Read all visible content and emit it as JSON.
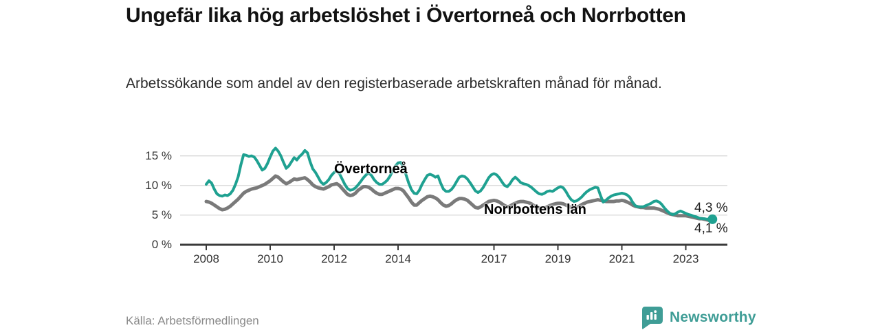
{
  "header": {
    "title": "Ungefär lika hög arbetslöshet i Övertorneå och Norrbotten",
    "subtitle": "Arbetssökande som andel av den registerbaserade arbetskraften månad för månad."
  },
  "footer": {
    "source": "Källa: Arbetsförmedlingen",
    "brand": "Newsworthy"
  },
  "colors": {
    "accent_teal": "#1fa191",
    "line_gray": "#7a7a7a",
    "logo_teal": "#3f9d96",
    "axis": "#3a3a3a",
    "gridline": "#d9d9d9",
    "tick_text": "#333333",
    "end_label_text": "#222222"
  },
  "chart_data": {
    "type": "line",
    "title": "Ungefär lika hög arbetslöshet i Övertorneå och Norrbotten",
    "subtitle": "Arbetssökande som andel av den registerbaserade arbetskraften månad för månad.",
    "unit": "%",
    "x_frequency": "monthly",
    "x_start": "2008-01",
    "x_end": "2023-11",
    "ylim": [
      0,
      17.6
    ],
    "grid": "horizontal",
    "y_ticks": [
      {
        "value": 0,
        "label": "0 %"
      },
      {
        "value": 5,
        "label": "5 %"
      },
      {
        "value": 10,
        "label": "10 %"
      },
      {
        "value": 15,
        "label": "15 %"
      }
    ],
    "x_tick_years": [
      2008,
      2010,
      2012,
      2014,
      2017,
      2019,
      2021,
      2023
    ],
    "series": [
      {
        "name": "Övertorneå",
        "color": "#1fa191",
        "end_label": "4,3 %",
        "end_value": 4.3,
        "values": [
          10.2,
          10.8,
          10.4,
          9.4,
          8.6,
          8.3,
          8.2,
          8.4,
          8.3,
          8.6,
          9.2,
          10.2,
          11.5,
          13.5,
          15.2,
          15.1,
          14.9,
          15.0,
          14.8,
          14.2,
          13.4,
          12.6,
          12.9,
          13.7,
          14.8,
          15.8,
          16.3,
          15.8,
          15.0,
          13.9,
          12.9,
          13.3,
          14.0,
          14.7,
          14.3,
          14.9,
          15.3,
          15.9,
          15.5,
          14.0,
          12.8,
          12.2,
          11.4,
          10.6,
          10.2,
          10.5,
          11.0,
          11.7,
          12.2,
          12.5,
          12.0,
          11.1,
          10.2,
          9.5,
          9.2,
          9.3,
          9.6,
          10.1,
          10.7,
          11.3,
          11.8,
          12.1,
          11.7,
          11.0,
          10.5,
          10.2,
          10.2,
          10.5,
          10.9,
          11.6,
          12.5,
          13.3,
          13.8,
          13.9,
          13.1,
          11.8,
          10.4,
          9.3,
          8.7,
          8.6,
          9.2,
          10.2,
          11.0,
          11.7,
          11.9,
          11.7,
          11.4,
          11.6,
          10.4,
          9.4,
          9.0,
          9.0,
          9.3,
          9.9,
          10.7,
          11.4,
          11.6,
          11.5,
          11.1,
          10.5,
          9.8,
          9.1,
          8.8,
          9.1,
          9.7,
          10.5,
          11.3,
          11.8,
          12.0,
          11.8,
          11.3,
          10.6,
          10.0,
          9.8,
          10.3,
          11.0,
          11.4,
          11.0,
          10.5,
          10.3,
          10.2,
          10.0,
          9.7,
          9.3,
          8.9,
          8.6,
          8.5,
          8.7,
          9.0,
          9.1,
          9.0,
          9.3,
          9.6,
          9.8,
          9.6,
          9.0,
          8.2,
          7.6,
          7.3,
          7.4,
          7.7,
          8.1,
          8.6,
          9.0,
          9.3,
          9.5,
          9.7,
          9.6,
          8.3,
          7.2,
          7.5,
          7.9,
          8.2,
          8.4,
          8.5,
          8.6,
          8.7,
          8.6,
          8.4,
          8.0,
          7.2,
          6.6,
          6.4,
          6.4,
          6.4,
          6.6,
          6.8,
          7.0,
          7.3,
          7.4,
          7.2,
          6.8,
          6.2,
          5.7,
          5.3,
          5.1,
          5.2,
          5.5,
          5.7,
          5.5,
          5.3,
          5.1,
          5.0,
          4.8,
          4.7,
          4.5,
          4.4,
          4.4,
          4.3,
          4.3,
          4.3
        ]
      },
      {
        "name": "Norrbottens län",
        "color": "#7a7a7a",
        "end_label": "4,1 %",
        "end_value": 4.1,
        "values": [
          7.3,
          7.2,
          7.0,
          6.7,
          6.4,
          6.1,
          5.9,
          6.0,
          6.2,
          6.5,
          6.9,
          7.3,
          7.7,
          8.2,
          8.7,
          9.0,
          9.2,
          9.4,
          9.5,
          9.6,
          9.8,
          10.0,
          10.2,
          10.5,
          10.8,
          11.2,
          11.6,
          11.4,
          11.0,
          10.6,
          10.3,
          10.5,
          10.8,
          11.1,
          11.0,
          11.1,
          11.2,
          11.3,
          11.0,
          10.6,
          10.1,
          9.8,
          9.6,
          9.5,
          9.4,
          9.6,
          9.8,
          10.1,
          10.2,
          10.3,
          10.0,
          9.5,
          9.0,
          8.5,
          8.3,
          8.4,
          8.7,
          9.2,
          9.5,
          9.8,
          9.8,
          9.7,
          9.4,
          9.0,
          8.7,
          8.5,
          8.5,
          8.7,
          8.9,
          9.1,
          9.3,
          9.5,
          9.5,
          9.4,
          9.1,
          8.5,
          7.9,
          7.2,
          6.7,
          6.7,
          7.1,
          7.5,
          7.8,
          8.1,
          8.2,
          8.1,
          7.9,
          7.6,
          7.1,
          6.7,
          6.5,
          6.6,
          6.9,
          7.3,
          7.6,
          7.8,
          7.8,
          7.7,
          7.5,
          7.1,
          6.7,
          6.3,
          6.2,
          6.4,
          6.7,
          7.0,
          7.3,
          7.4,
          7.5,
          7.4,
          7.2,
          6.9,
          6.6,
          6.4,
          6.5,
          6.8,
          7.0,
          7.2,
          7.3,
          7.3,
          7.2,
          7.1,
          6.9,
          6.6,
          6.4,
          6.2,
          6.1,
          6.2,
          6.4,
          6.6,
          6.8,
          6.9,
          7.0,
          7.0,
          6.9,
          6.7,
          6.5,
          6.3,
          6.2,
          6.3,
          6.5,
          6.8,
          7.0,
          7.2,
          7.3,
          7.4,
          7.5,
          7.6,
          7.5,
          7.4,
          7.3,
          7.3,
          7.3,
          7.3,
          7.4,
          7.4,
          7.5,
          7.4,
          7.2,
          7.0,
          6.7,
          6.5,
          6.4,
          6.3,
          6.3,
          6.2,
          6.2,
          6.2,
          6.2,
          6.1,
          6.0,
          5.8,
          5.6,
          5.4,
          5.2,
          5.1,
          5.0,
          4.9,
          4.9,
          4.9,
          4.9,
          4.8,
          4.7,
          4.6,
          4.5,
          4.4,
          4.4,
          4.3,
          4.2,
          4.1,
          4.1
        ]
      }
    ]
  }
}
